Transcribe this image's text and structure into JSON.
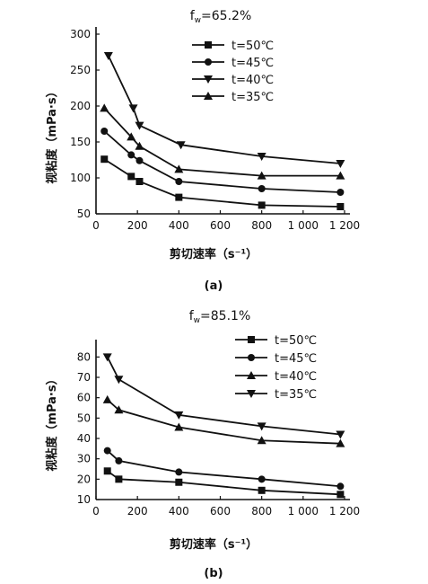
{
  "colors": {
    "ink": "#111111",
    "background": "#ffffff"
  },
  "chart_data": [
    {
      "type": "line",
      "panel": "(a)",
      "fw_label": "f",
      "fw_sub": "w",
      "fw_value": "=65.2%",
      "xlabel": "剪切速率（s⁻¹）",
      "ylabel": "视粘度（mPa·s）",
      "xlim": [
        0,
        1200
      ],
      "ylim": [
        50,
        300
      ],
      "xticks": [
        0,
        200,
        400,
        600,
        800,
        1000,
        1200
      ],
      "xtick_labels": [
        "0",
        "200",
        "400",
        "600",
        "800",
        "1 000",
        "1 200"
      ],
      "yticks": [
        50,
        100,
        150,
        200,
        250,
        300
      ],
      "ytick_labels": [
        "50",
        "100",
        "150",
        "200",
        "250",
        "300"
      ],
      "legend_position": "top-right",
      "series": [
        {
          "name": "t=50℃",
          "marker": "square",
          "x": [
            40,
            170,
            210,
            400,
            800,
            1180
          ],
          "values": [
            126,
            102,
            95,
            73,
            62,
            60
          ]
        },
        {
          "name": "t=45℃",
          "marker": "circle",
          "x": [
            40,
            170,
            210,
            400,
            800,
            1180
          ],
          "values": [
            165,
            132,
            124,
            95,
            85,
            80
          ]
        },
        {
          "name": "t=40℃",
          "marker": "triangle-down",
          "x": [
            60,
            180,
            210,
            410,
            800,
            1180
          ],
          "values": [
            270,
            197,
            173,
            146,
            130,
            120
          ]
        },
        {
          "name": "t=35℃",
          "marker": "triangle-up",
          "x": [
            40,
            170,
            210,
            400,
            800,
            1180
          ],
          "values": [
            197,
            157,
            144,
            112,
            103,
            103
          ]
        }
      ]
    },
    {
      "type": "line",
      "panel": "(b)",
      "fw_label": "f",
      "fw_sub": "w",
      "fw_value": "=85.1%",
      "xlabel": "剪切速率（s⁻¹）",
      "ylabel": "视粘度（mPa·s）",
      "xlim": [
        0,
        1200
      ],
      "ylim": [
        10,
        85
      ],
      "xticks": [
        0,
        200,
        400,
        600,
        800,
        1000,
        1200
      ],
      "xtick_labels": [
        "0",
        "200",
        "400",
        "600",
        "800",
        "1 000",
        "1 200"
      ],
      "yticks": [
        10,
        20,
        30,
        40,
        50,
        60,
        70,
        80
      ],
      "ytick_labels": [
        "10",
        "20",
        "30",
        "40",
        "50",
        "60",
        "70",
        "80"
      ],
      "legend_position": "top-right",
      "series": [
        {
          "name": "t=50℃",
          "marker": "square",
          "x": [
            55,
            110,
            400,
            800,
            1180
          ],
          "values": [
            24,
            20,
            18.5,
            14.5,
            12.5
          ]
        },
        {
          "name": "t=45℃",
          "marker": "circle",
          "x": [
            55,
            110,
            400,
            800,
            1180
          ],
          "values": [
            34,
            29,
            23.5,
            20,
            16.5
          ]
        },
        {
          "name": "t=40℃",
          "marker": "triangle-up",
          "x": [
            55,
            110,
            400,
            800,
            1180
          ],
          "values": [
            59,
            54,
            45.5,
            39,
            37.5
          ]
        },
        {
          "name": "t=35℃",
          "marker": "triangle-down",
          "x": [
            55,
            110,
            400,
            800,
            1180
          ],
          "values": [
            80,
            69,
            51.5,
            46,
            42
          ]
        }
      ]
    }
  ]
}
